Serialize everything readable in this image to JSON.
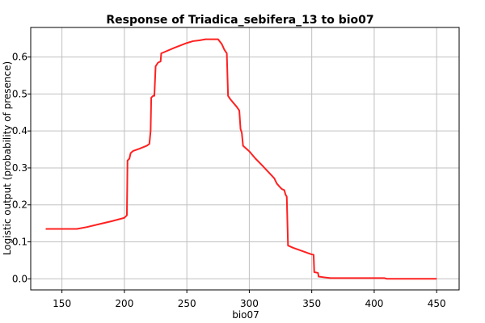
{
  "chart_data": {
    "type": "line",
    "title": "Response of Triadica_sebifera_13 to bio07",
    "xlabel": "bio07",
    "ylabel": "Logistic output (probability of presence)",
    "xlim": [
      125,
      468
    ],
    "ylim": [
      -0.03,
      0.68
    ],
    "xticks": [
      150,
      200,
      250,
      300,
      350,
      400,
      450
    ],
    "yticks": [
      0.0,
      0.1,
      0.2,
      0.3,
      0.4,
      0.5,
      0.6
    ],
    "xtick_labels": [
      "150",
      "200",
      "250",
      "300",
      "350",
      "400",
      "450"
    ],
    "ytick_labels": [
      "0.0",
      "0.1",
      "0.2",
      "0.3",
      "0.4",
      "0.5",
      "0.6"
    ],
    "grid": true,
    "colors": {
      "line": "#ff2020",
      "grid": "#c0c0c0",
      "axis": "#000000"
    },
    "series": [
      {
        "x": [
          137,
          162,
          170,
          180,
          190,
          200,
          202,
          202.5,
          204,
          205,
          207,
          212,
          218,
          220,
          221,
          221.5,
          223,
          224,
          225,
          227,
          229,
          229.5,
          231,
          240,
          250,
          255,
          260,
          265,
          275,
          278,
          280,
          282,
          283,
          285,
          290,
          292,
          293,
          294,
          295,
          300,
          305,
          310,
          315,
          320,
          322,
          324,
          326,
          328,
          329,
          330,
          331,
          335,
          340,
          345,
          350,
          351.5,
          352,
          355,
          355.5,
          360,
          365,
          370,
          380,
          390,
          400,
          408,
          410,
          420,
          430,
          440,
          450
        ],
        "y": [
          0.135,
          0.135,
          0.14,
          0.148,
          0.156,
          0.165,
          0.172,
          0.32,
          0.325,
          0.34,
          0.346,
          0.352,
          0.36,
          0.365,
          0.4,
          0.49,
          0.495,
          0.495,
          0.575,
          0.585,
          0.588,
          0.61,
          0.612,
          0.625,
          0.638,
          0.643,
          0.645,
          0.648,
          0.648,
          0.635,
          0.62,
          0.61,
          0.495,
          0.485,
          0.465,
          0.455,
          0.405,
          0.395,
          0.36,
          0.345,
          0.325,
          0.308,
          0.29,
          0.272,
          0.258,
          0.25,
          0.243,
          0.24,
          0.228,
          0.222,
          0.09,
          0.084,
          0.078,
          0.072,
          0.066,
          0.065,
          0.018,
          0.016,
          0.006,
          0.004,
          0.002,
          0.002,
          0.002,
          0.002,
          0.002,
          0.002,
          0.0,
          0.0,
          0.0,
          0.0,
          0.0
        ]
      }
    ]
  }
}
